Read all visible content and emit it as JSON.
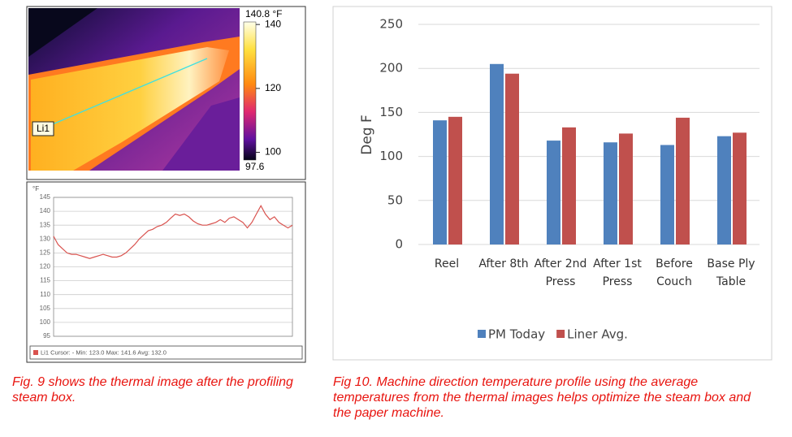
{
  "thermal_image": {
    "line_label": "Li1",
    "clim": [
      97.6,
      140.8
    ],
    "colorbar_ticks": [
      {
        "value": 140.8,
        "label": "140.8 °F"
      },
      140,
      120,
      100,
      97.6
    ]
  },
  "chart_data": [
    {
      "type": "line",
      "y_label": "°F",
      "legend_text": "Li1 Cursor: - Min: 123.0 Max: 141.6 Avg: 132.0",
      "color": "#d9534f",
      "categories": [
        null,
        null,
        null,
        null,
        null,
        null,
        null,
        null,
        null,
        null,
        null,
        null,
        null,
        null,
        null,
        null,
        null,
        null,
        null,
        null,
        null,
        null,
        null,
        null,
        null,
        null,
        null,
        null,
        null,
        null,
        null,
        null,
        null,
        null,
        null,
        null,
        null,
        null,
        null,
        null,
        null,
        null,
        null,
        null,
        null,
        null,
        null,
        null,
        null,
        null,
        null,
        null,
        null,
        null
      ],
      "values": [
        131,
        128,
        126.5,
        125,
        124.5,
        124.5,
        124,
        123.5,
        123,
        123.5,
        124,
        124.5,
        124,
        123.5,
        123.5,
        124,
        125,
        126.5,
        128,
        130,
        131.5,
        133,
        133.5,
        134.5,
        135,
        136,
        137.5,
        139,
        138.5,
        139,
        138,
        136.5,
        135.5,
        135,
        135,
        135.5,
        136,
        137,
        136,
        137.5,
        138,
        137,
        136,
        134,
        136,
        139,
        142,
        139,
        137,
        138,
        136,
        135,
        134,
        135
      ],
      "ylim": [
        95,
        145
      ],
      "yticks": [
        95,
        100,
        105,
        110,
        115,
        120,
        125,
        130,
        135,
        140,
        145
      ],
      "grid": true
    },
    {
      "type": "bar",
      "y_label": "Deg F",
      "categories": [
        "Reel",
        "After 8th",
        "After 2nd Press",
        "After 1st Press",
        "Before Couch",
        "Base Ply Table"
      ],
      "series": [
        {
          "name": "PM Today",
          "color": "#4f81bd",
          "values": [
            141,
            205,
            118,
            116,
            113,
            123
          ]
        },
        {
          "name": "Liner Avg.",
          "color": "#c0504d",
          "values": [
            145,
            194,
            133,
            126,
            144,
            127
          ]
        }
      ],
      "ylim": [
        0,
        250
      ],
      "yticks": [
        0,
        50,
        100,
        150,
        200,
        250
      ],
      "grid": true,
      "legend": "bottom"
    }
  ],
  "captions": [
    "Fig. 9 shows the thermal image after the profiling steam box.",
    "Fig 10. Machine direction temperature profile using the average temperatures from the thermal images helps optimize the steam box and the paper machine."
  ]
}
